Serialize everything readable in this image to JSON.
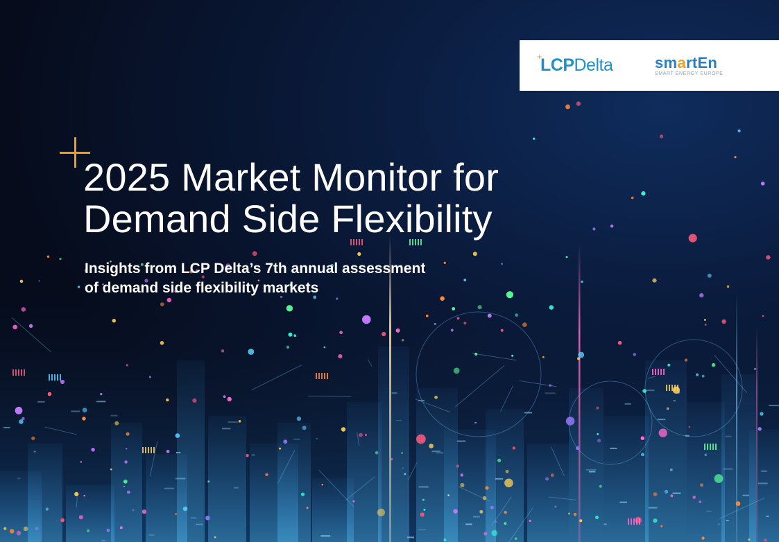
{
  "logos": {
    "lcp": {
      "text_bold": "LCP",
      "text_regular": "Delta",
      "plus": "+"
    },
    "smarten": {
      "word_a": "sm",
      "word_accent": "a",
      "word_b": "rtEn",
      "tagline": "SMART ENERGY EUROPE"
    }
  },
  "cover": {
    "title_line1": "2025 Market Monitor for",
    "title_line2": "Demand Side Flexibility",
    "subtitle_line1": "Insights from LCP Delta’s 7th annual assessment",
    "subtitle_line2": "of demand side flexibility markets"
  },
  "colors": {
    "background": "#060c1c",
    "accent_orange": "#f29c1f",
    "lcp_blue": "#1d92c9",
    "smarten_blue": "#2a7fc0",
    "text_white": "#ffffff"
  }
}
